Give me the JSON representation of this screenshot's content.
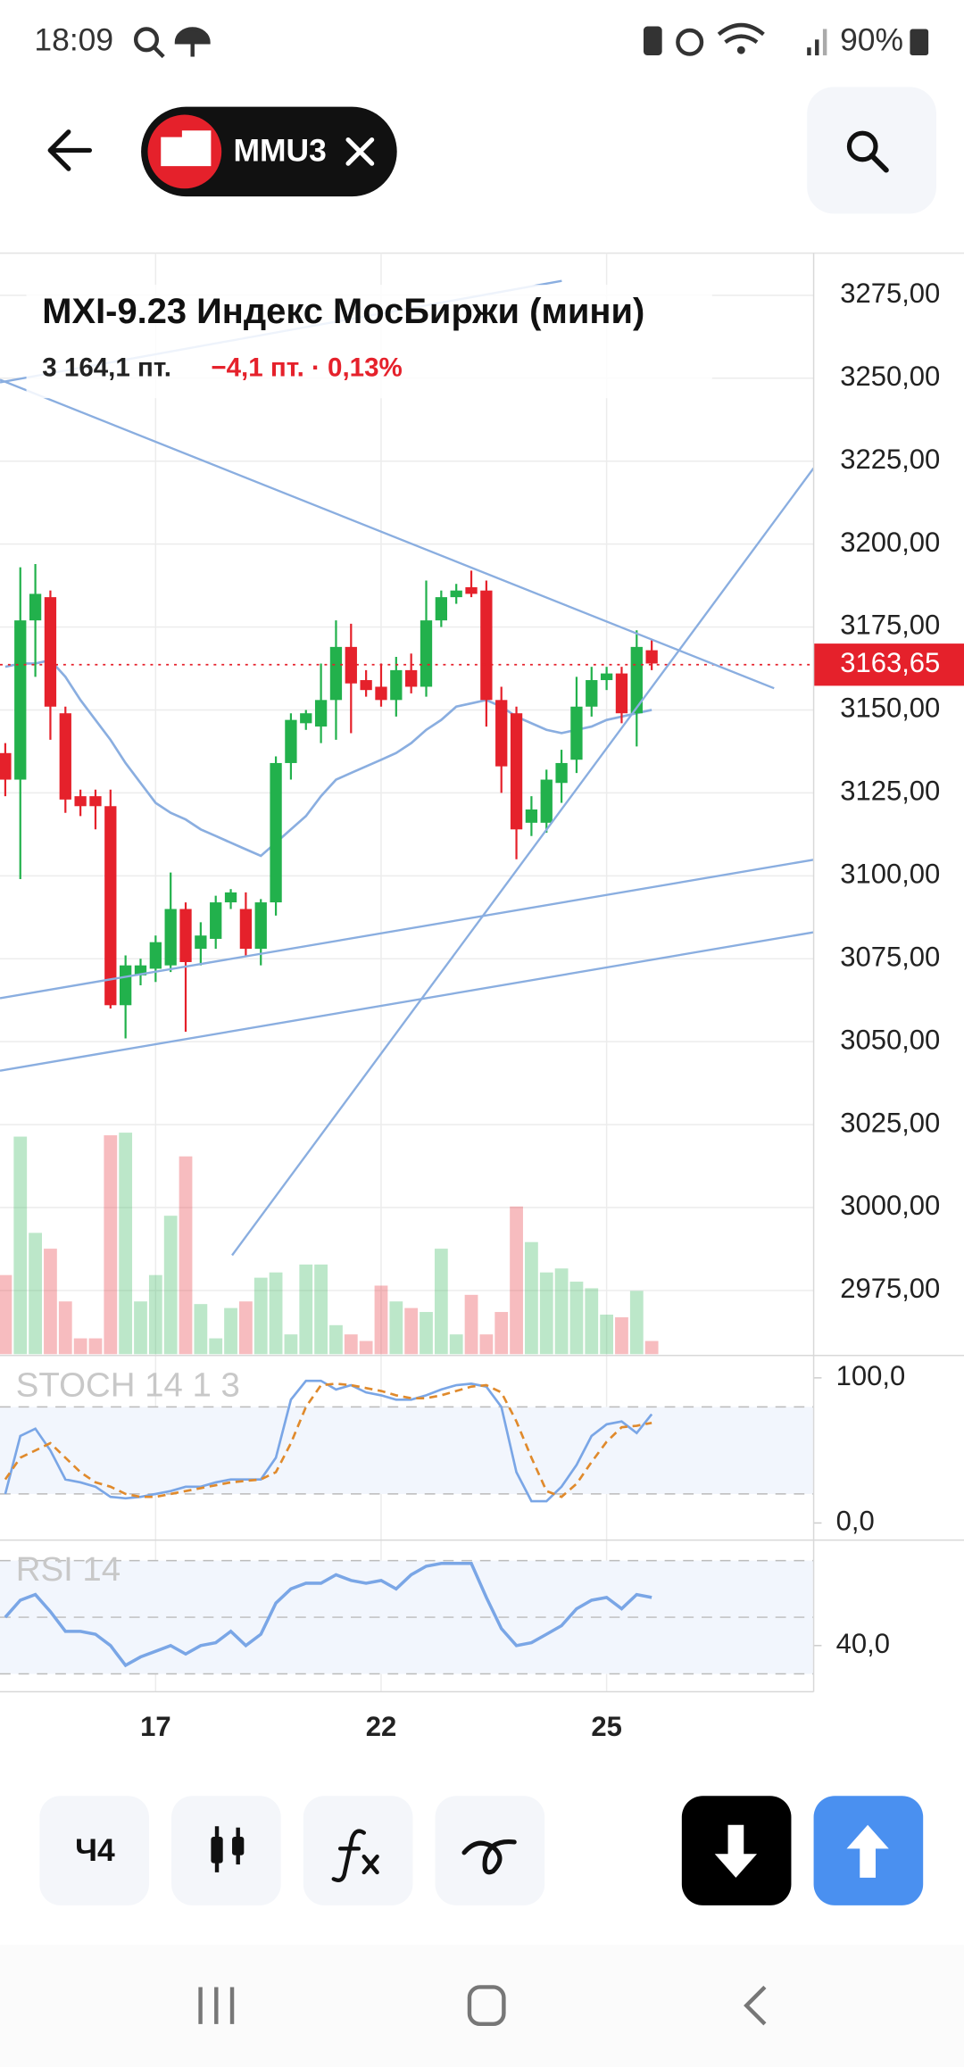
{
  "status_bar": {
    "time": "18:09",
    "battery": "90%"
  },
  "header": {
    "ticker": "MMU3"
  },
  "chart_data": {
    "type": "candlestick",
    "title": "MXI-9.23 Индекс МосБиржи (мини)",
    "price_label": "3 164,1 пт.",
    "change_label": "−4,1 пт. · 0,13%",
    "up_color": "#22b14c",
    "down_color": "#e5212b",
    "line_color": "#8aaee0",
    "grid": true,
    "categories": [
      null,
      null,
      null,
      null,
      null,
      null,
      null,
      null,
      null,
      null,
      "17",
      null,
      null,
      null,
      null,
      null,
      null,
      null,
      null,
      null,
      null,
      null,
      null,
      null,
      null,
      "22",
      null,
      null,
      null,
      null,
      null,
      null,
      null,
      null,
      null,
      null,
      null,
      null,
      null,
      null,
      "25",
      null,
      null,
      null
    ],
    "open": [
      3137,
      3129,
      3177,
      3184,
      3149,
      3124,
      3124,
      3121,
      3061,
      3070,
      3072,
      3073,
      3090,
      3078,
      3081,
      3092,
      3090,
      3078,
      3092,
      3134,
      3146,
      3145,
      3153,
      3169,
      3159,
      3157,
      3153,
      3162,
      3157,
      3177,
      3184,
      3187,
      3186,
      3153,
      3149,
      3116,
      3116,
      3128,
      3135,
      3151,
      3159,
      3161,
      3149,
      3168
    ],
    "high": [
      3140,
      3193,
      3194,
      3186,
      3151,
      3126,
      3126,
      3126,
      3076,
      3075,
      3082,
      3101,
      3092,
      3086,
      3094,
      3096,
      3095,
      3093,
      3136,
      3149,
      3150,
      3164,
      3177,
      3176,
      3162,
      3164,
      3166,
      3167,
      3189,
      3186,
      3188,
      3192,
      3189,
      3157,
      3151,
      3124,
      3132,
      3138,
      3160,
      3163,
      3163,
      3163,
      3174,
      3171
    ],
    "low": [
      3124,
      3099,
      3160,
      3141,
      3119,
      3118,
      3114,
      3060,
      3051,
      3067,
      3068,
      3071,
      3053,
      3073,
      3078,
      3090,
      3076,
      3073,
      3088,
      3129,
      3144,
      3140,
      3141,
      3143,
      3154,
      3151,
      3148,
      3155,
      3154,
      3175,
      3182,
      3184,
      3145,
      3125,
      3105,
      3112,
      3113,
      3122,
      3131,
      3148,
      3156,
      3146,
      3139,
      3162
    ],
    "close": [
      3129,
      3177,
      3185,
      3151,
      3123,
      3121,
      3121,
      3061,
      3073,
      3073,
      3080,
      3090,
      3074,
      3082,
      3092,
      3095,
      3078,
      3092,
      3134,
      3147,
      3149,
      3153,
      3169,
      3158,
      3156,
      3153,
      3162,
      3157,
      3177,
      3184,
      3186,
      3185,
      3153,
      3133,
      3114,
      3120,
      3129,
      3134,
      3151,
      3159,
      3161,
      3149,
      3169,
      3164
    ],
    "ma": [
      3163,
      3164,
      3164,
      3165,
      3160,
      3153,
      3147,
      3141,
      3134,
      3128,
      3122,
      3119,
      3117,
      3114,
      3112,
      3110,
      3108,
      3106,
      3110,
      3114,
      3118,
      3124,
      3129,
      3131,
      3133,
      3135,
      3137,
      3140,
      3144,
      3147,
      3151,
      3152,
      3153,
      3151,
      3148,
      3146,
      3144,
      3143,
      3144,
      3145,
      3147,
      3148,
      3149,
      3150
    ],
    "volume": [
      60,
      165,
      92,
      80,
      40,
      12,
      12,
      166,
      168,
      40,
      60,
      105,
      150,
      38,
      12,
      35,
      40,
      58,
      62,
      15,
      68,
      68,
      22,
      15,
      10,
      52,
      40,
      35,
      32,
      80,
      15,
      45,
      15,
      32,
      112,
      85,
      62,
      65,
      55,
      50,
      30,
      28,
      48,
      10
    ],
    "ylim": [
      2955.8,
      3287.7
    ],
    "yticks": [
      {
        "value": 3275,
        "label": "3275,00"
      },
      {
        "value": 3250,
        "label": "3250,00"
      },
      {
        "value": 3225,
        "label": "3225,00"
      },
      {
        "value": 3200,
        "label": "3200,00"
      },
      {
        "value": 3175,
        "label": "3175,00"
      },
      {
        "value": 3150,
        "label": "3150,00"
      },
      {
        "value": 3125,
        "label": "3125,00"
      },
      {
        "value": 3100,
        "label": "3100,00"
      },
      {
        "value": 3075,
        "label": "3075,00"
      },
      {
        "value": 3050,
        "label": "3050,00"
      },
      {
        "value": 3025,
        "label": "3025,00"
      },
      {
        "value": 3000,
        "label": "3000,00"
      },
      {
        "value": 2975,
        "label": "2975,00"
      }
    ],
    "last_price": {
      "value": 3163.65,
      "label": "3163,65"
    },
    "stoch": {
      "label": "STOCH 14 1 3",
      "k_color": "#7aa6e6",
      "d_color": "#e08a2c",
      "k": [
        20,
        60,
        65,
        50,
        30,
        28,
        25,
        18,
        17,
        18,
        20,
        22,
        25,
        25,
        28,
        30,
        30,
        30,
        45,
        85,
        98,
        98,
        92,
        95,
        90,
        88,
        85,
        85,
        88,
        92,
        95,
        96,
        94,
        80,
        35,
        15,
        15,
        25,
        40,
        60,
        68,
        70,
        62,
        75
      ],
      "d": [
        30,
        45,
        50,
        55,
        45,
        35,
        28,
        25,
        20,
        18,
        18,
        20,
        22,
        24,
        26,
        28,
        29,
        30,
        35,
        55,
        80,
        95,
        96,
        95,
        93,
        91,
        88,
        86,
        86,
        88,
        91,
        94,
        95,
        90,
        70,
        45,
        22,
        18,
        27,
        42,
        56,
        66,
        67,
        69
      ],
      "ylim": [
        -11.8,
        113.6
      ],
      "yticks": [
        {
          "value": 100,
          "label": "100,0"
        },
        {
          "value": 0,
          "label": "0,0"
        }
      ],
      "levels": [
        80,
        20
      ]
    },
    "rsi": {
      "label": "RSI 14",
      "color": "#7aa6e6",
      "values": [
        50,
        56,
        58,
        52,
        45,
        45,
        44,
        40,
        33,
        36,
        38,
        40,
        37,
        40,
        41,
        45,
        40,
        44,
        55,
        60,
        62,
        62,
        65,
        63,
        62,
        63,
        60,
        65,
        68,
        69,
        69,
        69,
        57,
        46,
        40,
        41,
        44,
        47,
        53,
        56,
        57,
        53,
        58,
        57
      ],
      "ylim": [
        23.7,
        76.3
      ],
      "yticks": [
        {
          "value": 40,
          "label": "40,0"
        }
      ],
      "levels": [
        70,
        50,
        30
      ]
    }
  },
  "toolbar": {
    "interval": "Ч4"
  }
}
